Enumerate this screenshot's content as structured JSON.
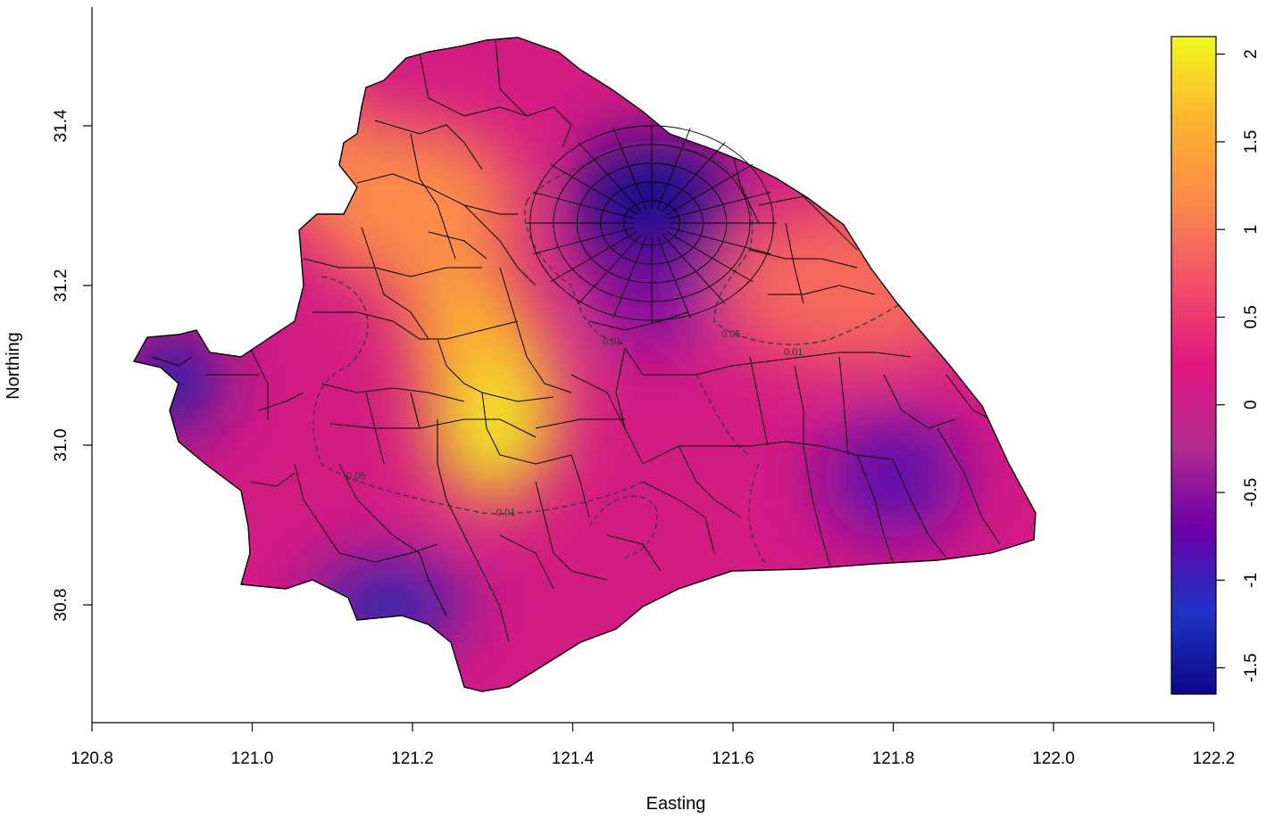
{
  "chart_data": {
    "type": "heatmap",
    "title": "",
    "xlabel": "Easting",
    "ylabel": "Northing",
    "xlim": [
      120.8,
      122.2
    ],
    "ylim": [
      30.7,
      31.55
    ],
    "x_ticks": [
      "120.8",
      "121.0",
      "121.2",
      "121.4",
      "121.6",
      "121.8",
      "122.0",
      "122.2"
    ],
    "x_tick_values": [
      120.8,
      121.0,
      121.2,
      121.4,
      121.6,
      121.8,
      122.0,
      122.2
    ],
    "y_ticks": [
      "30.8",
      "31.0",
      "31.2",
      "31.4"
    ],
    "y_tick_values": [
      30.8,
      31.0,
      31.2,
      31.4
    ],
    "colorbar": {
      "range": [
        -1.65,
        2.1
      ],
      "ticks": [
        "-1.5",
        "-1",
        "-0.5",
        "0",
        "0.5",
        "1",
        "1.5",
        "2"
      ],
      "tick_values": [
        -1.5,
        -1,
        -0.5,
        0,
        0.5,
        1,
        1.5,
        2
      ],
      "colors": [
        "#0d0887",
        "#1f33c4",
        "#6a00a8",
        "#b12a90",
        "#e0157f",
        "#f2506a",
        "#fb8a4a",
        "#fdb52d",
        "#f0f921"
      ]
    },
    "contour_labels": [
      "0.05",
      "0.01",
      "0.01",
      "0.05",
      "0.01"
    ],
    "hotspots": [
      {
        "x": 121.3,
        "y": 31.05,
        "value": 2.0
      },
      {
        "x": 121.27,
        "y": 31.15,
        "value": 1.6
      },
      {
        "x": 121.2,
        "y": 31.3,
        "value": 1.2
      },
      {
        "x": 121.05,
        "y": 31.38,
        "value": 1.1
      },
      {
        "x": 121.75,
        "y": 31.2,
        "value": 0.9
      },
      {
        "x": 121.5,
        "y": 31.3,
        "value": -1.6
      },
      {
        "x": 120.9,
        "y": 31.08,
        "value": -1.4
      },
      {
        "x": 121.17,
        "y": 30.8,
        "value": -1.3
      },
      {
        "x": 121.8,
        "y": 30.96,
        "value": -0.8
      },
      {
        "x": 121.5,
        "y": 31.18,
        "value": -0.6
      }
    ]
  }
}
